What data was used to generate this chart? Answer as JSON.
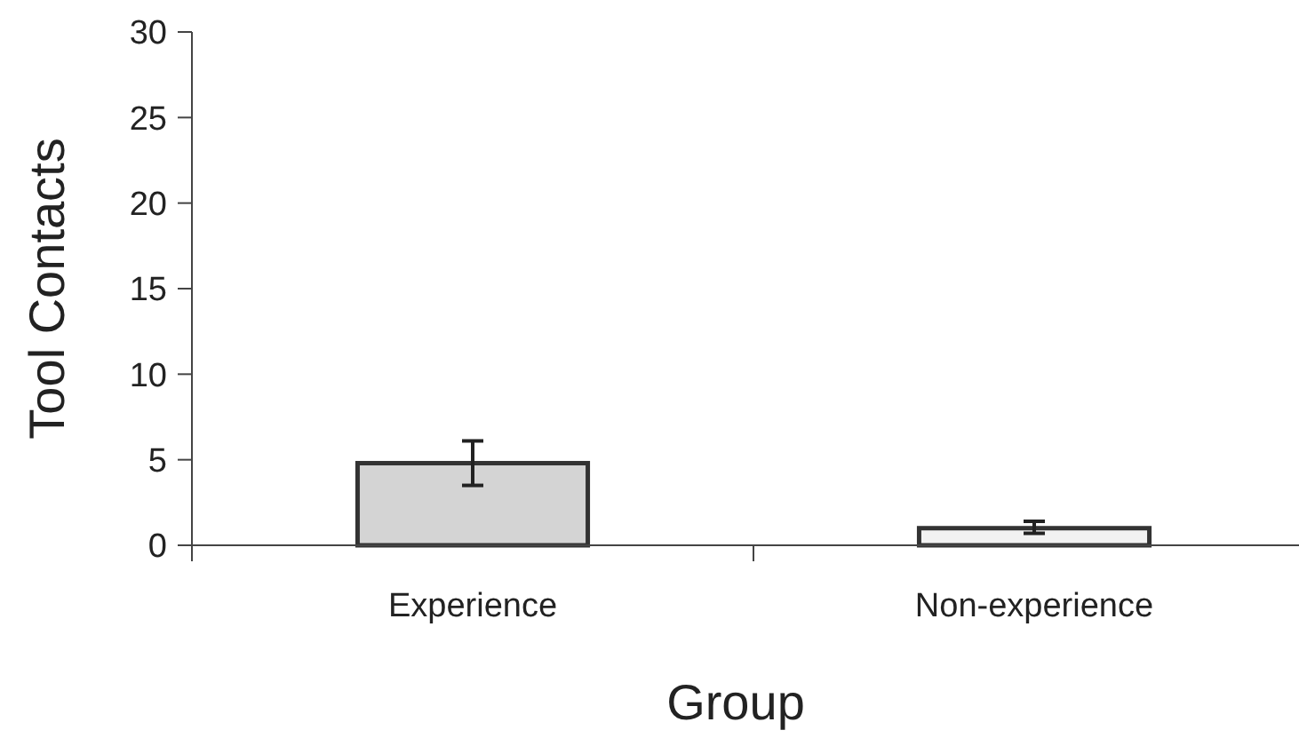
{
  "chart_data": {
    "type": "bar",
    "xlabel": "Group",
    "ylabel": "Tool Contacts",
    "categories": [
      "Experience",
      "Non-experience"
    ],
    "values": [
      4.8,
      1.0
    ],
    "colors": [
      "#d4d4d4",
      "#f2f2f2"
    ],
    "errors": [
      [
        3.5,
        6.1
      ],
      [
        0.7,
        1.4
      ]
    ],
    "ylim": [
      0,
      30
    ],
    "yticks": [
      0,
      5,
      10,
      15,
      20,
      25,
      30
    ],
    "grid": false
  }
}
